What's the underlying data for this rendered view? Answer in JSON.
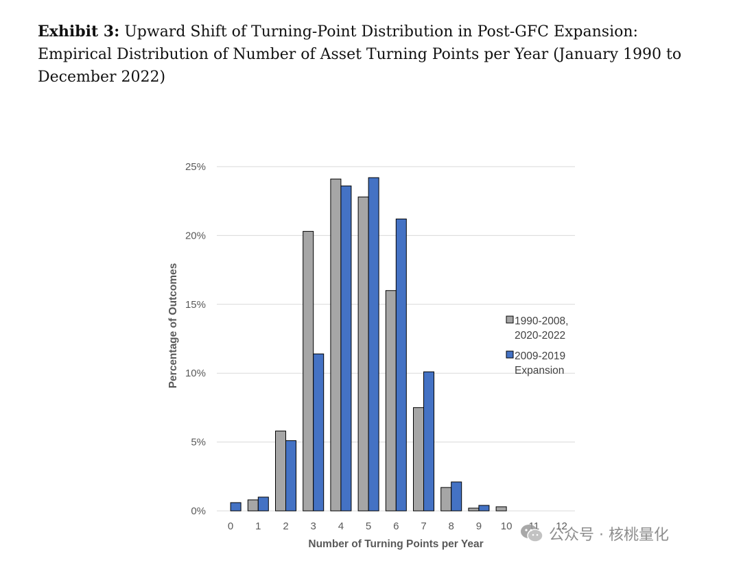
{
  "caption": {
    "label": "Exhibit 3:",
    "text": "Upward Shift of Turning-Point Distribution in Post-GFC Expansion: Empirical Distribution of Number of Asset Turning Points per Year (January 1990 to December 2022)"
  },
  "watermark": {
    "text": "公众号 · 核桃量化",
    "icon": "wechat-icon"
  },
  "colors": {
    "series_1": "#a6a6a6",
    "series_2": "#4472c4",
    "bar_outline": "#000000",
    "gridline": "#d9d9d9",
    "tick_text": "#595959"
  },
  "chart_data": {
    "type": "bar",
    "title": "",
    "xlabel": "Number of Turning Points per Year",
    "ylabel": "Percentage of Outcomes",
    "categories": [
      "0",
      "1",
      "2",
      "3",
      "4",
      "5",
      "6",
      "7",
      "8",
      "9",
      "10",
      "11",
      "12"
    ],
    "series": [
      {
        "name": "1990-2008,\n2020-2022",
        "values": [
          0.0,
          0.8,
          5.8,
          20.3,
          24.1,
          22.8,
          16.0,
          7.5,
          1.7,
          0.2,
          0.3,
          0.0,
          0.0
        ]
      },
      {
        "name": "2009-2019\nExpansion",
        "values": [
          0.6,
          1.0,
          5.1,
          11.4,
          23.6,
          24.2,
          21.2,
          10.1,
          2.1,
          0.4,
          0.0,
          0.0,
          0.0
        ]
      }
    ],
    "ylim": [
      0,
      25
    ],
    "yticks": [
      "0%",
      "5%",
      "10%",
      "15%",
      "20%",
      "25%"
    ],
    "ytick_values": [
      0,
      5,
      10,
      15,
      20,
      25
    ],
    "grid": true,
    "legend_position": "right"
  }
}
